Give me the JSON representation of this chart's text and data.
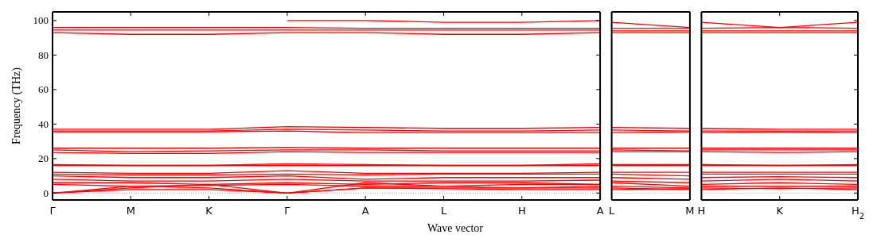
{
  "chart_data": [
    {
      "type": "line",
      "ylabel": "Frequency (THz)",
      "xlabel": "Wave vector",
      "color": "#ff0000",
      "line_style": "solid",
      "marker": "none",
      "grid": false,
      "categories": [
        "Γ",
        "M",
        "K",
        "Γ",
        "A",
        "L",
        "H",
        "A"
      ],
      "ylim": [
        -4,
        105
      ],
      "yticks": [
        0,
        20,
        40,
        60,
        80,
        100
      ],
      "ref_lines": [
        {
          "axis": "y",
          "value": 0,
          "color": "#8080ff",
          "line_style": "dotted"
        }
      ],
      "series": [
        {
          "values": [
            null,
            null,
            null,
            100,
            100,
            99,
            99,
            100
          ]
        },
        {
          "values": [
            96,
            96,
            96,
            96,
            95.5,
            95.5,
            95.5,
            95.5
          ]
        },
        {
          "values": [
            94.5,
            94.5,
            94.5,
            94.5,
            94.5,
            94.5,
            94.5,
            94.5
          ]
        },
        {
          "values": [
            93,
            92,
            92,
            93,
            93,
            92,
            92,
            93
          ]
        },
        {
          "values": [
            37,
            37,
            37,
            38.5,
            38,
            37.5,
            37.5,
            38
          ]
        },
        {
          "values": [
            36,
            36,
            36,
            37,
            36.5,
            36,
            36,
            36.5
          ]
        },
        {
          "values": [
            35.5,
            35.5,
            35.5,
            36,
            35,
            35,
            35,
            35
          ]
        },
        {
          "values": [
            26,
            26,
            26,
            26.5,
            26,
            26,
            26,
            26
          ]
        },
        {
          "values": [
            25,
            24,
            24.5,
            25,
            25,
            24.5,
            24.5,
            24.5
          ]
        },
        {
          "values": [
            23.5,
            23,
            23,
            24,
            23.5,
            23.5,
            23.5,
            23.5
          ]
        },
        {
          "values": [
            16.5,
            16,
            16,
            17,
            16.5,
            16,
            16,
            17
          ]
        },
        {
          "values": [
            16,
            16,
            16,
            16,
            16,
            16,
            16,
            16
          ]
        },
        {
          "values": [
            12,
            11.5,
            11.5,
            13,
            11.5,
            11.5,
            11.5,
            12
          ]
        },
        {
          "values": [
            11,
            10.5,
            10.5,
            11,
            10.5,
            11,
            11,
            11
          ]
        },
        {
          "values": [
            10,
            9,
            9,
            10,
            8,
            9,
            9,
            9
          ]
        },
        {
          "values": [
            8,
            7,
            7,
            8,
            7,
            7,
            7,
            7.5
          ]
        },
        {
          "values": [
            6,
            6,
            5,
            6,
            5,
            6,
            6,
            5
          ]
        },
        {
          "values": [
            5,
            4,
            4.5,
            5,
            4,
            4,
            3,
            4
          ]
        },
        {
          "values": [
            0,
            2,
            2,
            0,
            3,
            3,
            3,
            3
          ]
        },
        {
          "values": [
            0,
            4,
            3,
            0,
            3,
            2.5,
            2,
            2
          ]
        },
        {
          "values": [
            0,
            3,
            5,
            0,
            6,
            4,
            5,
            5
          ]
        }
      ]
    },
    {
      "type": "line",
      "color": "#ff0000",
      "line_style": "solid",
      "marker": "none",
      "tick_labels": "x",
      "categories": [
        "L",
        "M"
      ],
      "ylim": [
        -4,
        105
      ],
      "ref_lines": [
        {
          "axis": "y",
          "value": 0,
          "color": "#8080ff",
          "line_style": "dotted"
        }
      ],
      "series": [
        {
          "values": [
            99,
            96
          ]
        },
        {
          "values": [
            95.5,
            95.5
          ]
        },
        {
          "values": [
            94,
            94
          ]
        },
        {
          "values": [
            93,
            93
          ]
        },
        {
          "values": [
            38,
            37.5
          ]
        },
        {
          "values": [
            36.5,
            36
          ]
        },
        {
          "values": [
            35,
            35.5
          ]
        },
        {
          "values": [
            26,
            26
          ]
        },
        {
          "values": [
            25,
            24.5
          ]
        },
        {
          "values": [
            24,
            24
          ]
        },
        {
          "values": [
            16.5,
            16.5
          ]
        },
        {
          "values": [
            16,
            16
          ]
        },
        {
          "values": [
            12,
            12
          ]
        },
        {
          "values": [
            11,
            10
          ]
        },
        {
          "values": [
            9,
            8
          ]
        },
        {
          "values": [
            7,
            6
          ]
        },
        {
          "values": [
            6,
            4
          ]
        },
        {
          "values": [
            4,
            3
          ]
        },
        {
          "values": [
            3,
            2
          ]
        },
        {
          "values": [
            2,
            2.5
          ]
        }
      ]
    },
    {
      "type": "line",
      "color": "#ff0000",
      "line_style": "solid",
      "marker": "none",
      "grid": false,
      "tick_labels": "x",
      "categories": [
        "H",
        "K",
        "H$_{2}$"
      ],
      "ylim": [
        -4,
        105
      ],
      "yticks": [
        0,
        20,
        40,
        60,
        80,
        100
      ],
      "ref_lines": [
        {
          "axis": "y",
          "value": 0,
          "color": "#8080ff",
          "line_style": "dotted"
        }
      ],
      "series": [
        {
          "values": [
            99,
            96,
            99
          ]
        },
        {
          "values": [
            95.5,
            96,
            95.5
          ]
        },
        {
          "values": [
            94,
            94,
            94
          ]
        },
        {
          "values": [
            93,
            93,
            93
          ]
        },
        {
          "values": [
            37.5,
            37,
            37
          ]
        },
        {
          "values": [
            36,
            36,
            36
          ]
        },
        {
          "values": [
            35,
            35.5,
            35
          ]
        },
        {
          "values": [
            26,
            26,
            26
          ]
        },
        {
          "values": [
            25,
            25,
            25
          ]
        },
        {
          "values": [
            24,
            23.5,
            24
          ]
        },
        {
          "values": [
            16.5,
            16,
            16.5
          ]
        },
        {
          "values": [
            16,
            16,
            16
          ]
        },
        {
          "values": [
            12,
            12,
            12
          ]
        },
        {
          "values": [
            11,
            11,
            11
          ]
        },
        {
          "values": [
            9,
            9.5,
            9
          ]
        },
        {
          "values": [
            7,
            8,
            7
          ]
        },
        {
          "values": [
            5,
            6,
            5
          ]
        },
        {
          "values": [
            4,
            4,
            4
          ]
        },
        {
          "values": [
            3,
            2.5,
            3
          ]
        },
        {
          "values": [
            2,
            3,
            2
          ]
        }
      ]
    }
  ]
}
